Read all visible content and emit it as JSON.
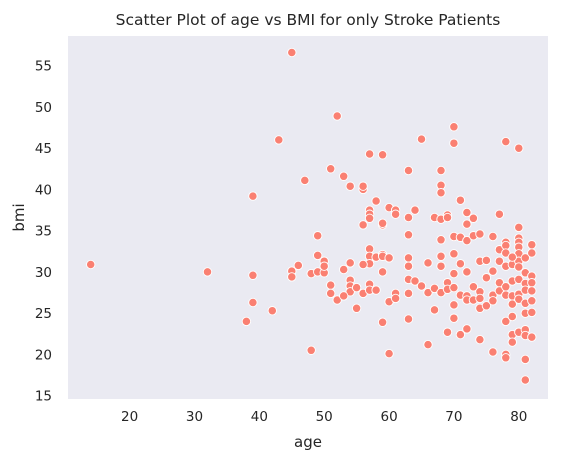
{
  "chart_data": {
    "type": "scatter",
    "title": "Scatter Plot of age vs BMI for only Stroke Patients",
    "xlabel": "age",
    "ylabel": "bmi",
    "xlim": [
      10.5,
      84.5
    ],
    "ylim": [
      14.6,
      58.6
    ],
    "xticks": [
      20,
      30,
      40,
      50,
      60,
      70,
      80
    ],
    "yticks": [
      15,
      20,
      25,
      30,
      35,
      40,
      45,
      50,
      55
    ],
    "grid": false,
    "color": "#fa8072",
    "series": [
      {
        "points": [
          [
            14,
            30.9
          ],
          [
            32,
            30.0
          ],
          [
            38,
            24.0
          ],
          [
            39,
            39.2
          ],
          [
            39,
            29.6
          ],
          [
            39,
            26.3
          ],
          [
            42,
            25.3
          ],
          [
            43,
            46.0
          ],
          [
            45,
            56.6
          ],
          [
            45,
            30.1
          ],
          [
            45,
            29.4
          ],
          [
            46,
            30.8
          ],
          [
            47,
            41.1
          ],
          [
            48,
            29.8
          ],
          [
            48,
            20.5
          ],
          [
            49,
            30.0
          ],
          [
            49,
            32.0
          ],
          [
            49,
            34.4
          ],
          [
            50,
            29.9
          ],
          [
            50,
            31.3
          ],
          [
            50,
            30.7
          ],
          [
            51,
            42.5
          ],
          [
            51,
            28.4
          ],
          [
            51,
            27.4
          ],
          [
            52,
            48.9
          ],
          [
            52,
            26.6
          ],
          [
            53,
            41.6
          ],
          [
            53,
            30.3
          ],
          [
            54,
            40.4
          ],
          [
            54,
            31.1
          ],
          [
            54,
            29.0
          ],
          [
            54,
            28.3
          ],
          [
            54,
            27.6
          ],
          [
            55,
            25.6
          ],
          [
            55,
            28.1
          ],
          [
            56,
            40.0
          ],
          [
            56,
            40.4
          ],
          [
            56,
            35.7
          ],
          [
            56,
            30.9
          ],
          [
            56,
            27.4
          ],
          [
            57,
            44.3
          ],
          [
            57,
            37.5
          ],
          [
            57,
            37.0
          ],
          [
            57,
            36.5
          ],
          [
            57,
            32.8
          ],
          [
            57,
            31.9
          ],
          [
            57,
            31.0
          ],
          [
            57,
            28.5
          ],
          [
            57,
            27.8
          ],
          [
            58,
            38.6
          ],
          [
            58,
            31.8
          ],
          [
            58,
            27.8
          ],
          [
            59,
            44.2
          ],
          [
            59,
            35.7
          ],
          [
            59,
            35.9
          ],
          [
            59,
            32.1
          ],
          [
            59,
            31.9
          ],
          [
            59,
            30.0
          ],
          [
            59,
            23.9
          ],
          [
            60,
            37.8
          ],
          [
            60,
            31.7
          ],
          [
            60,
            26.4
          ],
          [
            60,
            20.1
          ],
          [
            61,
            37.5
          ],
          [
            61,
            37.0
          ],
          [
            61,
            27.4
          ],
          [
            63,
            42.3
          ],
          [
            63,
            36.6
          ],
          [
            63,
            34.5
          ],
          [
            63,
            31.7
          ],
          [
            63,
            30.7
          ],
          [
            63,
            29.1
          ],
          [
            63,
            27.4
          ],
          [
            63,
            24.3
          ],
          [
            64,
            37.5
          ],
          [
            64,
            28.9
          ],
          [
            65,
            46.1
          ],
          [
            65,
            28.3
          ],
          [
            66,
            31.1
          ],
          [
            66,
            21.2
          ],
          [
            66,
            27.5
          ],
          [
            67,
            36.6
          ],
          [
            67,
            28.0
          ],
          [
            67,
            25.4
          ],
          [
            68,
            42.3
          ],
          [
            68,
            40.5
          ],
          [
            68,
            39.6
          ],
          [
            68,
            36.4
          ],
          [
            68,
            33.9
          ],
          [
            68,
            31.9
          ],
          [
            68,
            30.7
          ],
          [
            68,
            27.5
          ],
          [
            69,
            36.9
          ],
          [
            69,
            36.6
          ],
          [
            69,
            28.7
          ],
          [
            69,
            27.9
          ],
          [
            69,
            22.7
          ],
          [
            70,
            47.6
          ],
          [
            70,
            45.6
          ],
          [
            70,
            34.3
          ],
          [
            70,
            32.2
          ],
          [
            70,
            29.8
          ],
          [
            70,
            28.1
          ],
          [
            70,
            26.0
          ],
          [
            70,
            24.4
          ],
          [
            71,
            38.7
          ],
          [
            71,
            34.2
          ],
          [
            71,
            31.0
          ],
          [
            71,
            27.2
          ],
          [
            71,
            22.4
          ],
          [
            72,
            37.2
          ],
          [
            72,
            35.8
          ],
          [
            72,
            33.8
          ],
          [
            72,
            30.0
          ],
          [
            72,
            27.1
          ],
          [
            72,
            26.6
          ],
          [
            72,
            23.1
          ],
          [
            73,
            36.5
          ],
          [
            73,
            34.4
          ],
          [
            73,
            28.2
          ],
          [
            73,
            26.6
          ],
          [
            74,
            34.6
          ],
          [
            74,
            31.3
          ],
          [
            74,
            27.6
          ],
          [
            74,
            26.8
          ],
          [
            74,
            25.6
          ],
          [
            74,
            21.8
          ],
          [
            75,
            29.3
          ],
          [
            75,
            25.9
          ],
          [
            76,
            34.3
          ],
          [
            76,
            30.1
          ],
          [
            76,
            27.2
          ],
          [
            76,
            26.5
          ],
          [
            76,
            20.3
          ],
          [
            77,
            37.0
          ],
          [
            77,
            32.7
          ],
          [
            77,
            31.3
          ],
          [
            77,
            28.7
          ],
          [
            77,
            27.7
          ],
          [
            78,
            45.8
          ],
          [
            78,
            33.6
          ],
          [
            78,
            33.2
          ],
          [
            78,
            32.3
          ],
          [
            78,
            30.7
          ],
          [
            78,
            28.2
          ],
          [
            78,
            27.2
          ],
          [
            78,
            24.0
          ],
          [
            78,
            20.0
          ],
          [
            79,
            30.9
          ],
          [
            79,
            28.9
          ],
          [
            79,
            27.1
          ],
          [
            79,
            26.1
          ],
          [
            79,
            24.6
          ],
          [
            79,
            22.4
          ],
          [
            79,
            21.5
          ],
          [
            80,
            45.0
          ],
          [
            80,
            35.4
          ],
          [
            80,
            34.1
          ],
          [
            80,
            33.6
          ],
          [
            80,
            33.0
          ],
          [
            80,
            32.2
          ],
          [
            80,
            31.3
          ],
          [
            80,
            30.6
          ],
          [
            80,
            29.1
          ],
          [
            80,
            27.3
          ],
          [
            80,
            26.7
          ],
          [
            80,
            22.7
          ],
          [
            81,
            31.7
          ],
          [
            81,
            29.9
          ],
          [
            81,
            28.6
          ],
          [
            81,
            27.8
          ],
          [
            81,
            26.2
          ],
          [
            81,
            25.0
          ],
          [
            81,
            23.0
          ],
          [
            81,
            22.3
          ],
          [
            81,
            19.4
          ],
          [
            81,
            16.9
          ],
          [
            82,
            33.3
          ],
          [
            82,
            32.3
          ],
          [
            82,
            29.5
          ],
          [
            82,
            28.7
          ],
          [
            82,
            27.7
          ],
          [
            82,
            26.5
          ],
          [
            82,
            25.1
          ],
          [
            82,
            22.1
          ],
          [
            78,
            19.6
          ],
          [
            75,
            31.4
          ],
          [
            79,
            31.8
          ],
          [
            56,
            30.9
          ],
          [
            61,
            26.8
          ],
          [
            53,
            27.1
          ]
        ]
      }
    ]
  }
}
